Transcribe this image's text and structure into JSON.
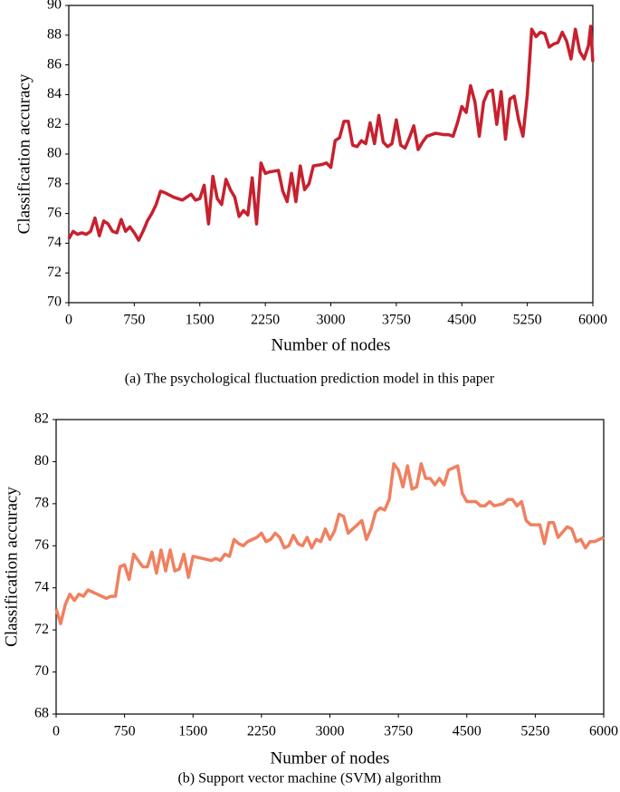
{
  "chart_data": [
    {
      "type": "line",
      "xlabel": "Number of nodes",
      "ylabel": "Classification accuracy",
      "caption": "(a) The psychological fluctuation prediction model in this paper",
      "color": "#c8202e",
      "x": [
        0,
        50,
        100,
        150,
        200,
        250,
        300,
        350,
        400,
        450,
        500,
        550,
        600,
        650,
        700,
        750,
        800,
        850,
        900,
        950,
        1000,
        1050,
        1100,
        1200,
        1300,
        1400,
        1450,
        1500,
        1550,
        1600,
        1650,
        1700,
        1750,
        1800,
        1850,
        1900,
        1950,
        2000,
        2050,
        2100,
        2150,
        2200,
        2250,
        2300,
        2400,
        2450,
        2500,
        2550,
        2600,
        2650,
        2700,
        2750,
        2800,
        2900,
        2950,
        3000,
        3050,
        3100,
        3150,
        3200,
        3250,
        3300,
        3350,
        3400,
        3450,
        3500,
        3550,
        3600,
        3650,
        3700,
        3750,
        3800,
        3850,
        3900,
        3950,
        4000,
        4050,
        4100,
        4200,
        4300,
        4350,
        4400,
        4450,
        4500,
        4550,
        4600,
        4650,
        4700,
        4750,
        4800,
        4850,
        4900,
        4950,
        5000,
        5050,
        5100,
        5150,
        5200,
        5250,
        5300,
        5350,
        5400,
        5450,
        5500,
        5550,
        5600,
        5650,
        5700,
        5750,
        5800,
        5850,
        5900,
        5950,
        5975,
        6000
      ],
      "values": [
        74.3,
        74.8,
        74.6,
        74.7,
        74.6,
        74.8,
        75.7,
        74.5,
        75.5,
        75.3,
        74.8,
        74.7,
        75.6,
        74.8,
        75.1,
        74.7,
        74.2,
        74.8,
        75.5,
        76.0,
        76.6,
        77.5,
        77.4,
        77.1,
        76.9,
        77.3,
        76.9,
        77.0,
        77.9,
        75.3,
        78.5,
        77.0,
        76.6,
        78.3,
        77.6,
        77.1,
        75.8,
        76.2,
        75.9,
        78.4,
        75.3,
        79.4,
        78.7,
        78.8,
        78.9,
        77.5,
        76.8,
        78.7,
        76.8,
        79.2,
        77.6,
        78.0,
        79.2,
        79.3,
        79.4,
        79.1,
        80.9,
        81.1,
        82.2,
        82.2,
        80.6,
        80.5,
        80.9,
        80.7,
        82.1,
        80.7,
        82.6,
        80.8,
        80.5,
        80.7,
        82.3,
        80.6,
        80.4,
        81.1,
        81.9,
        80.3,
        80.8,
        81.2,
        81.4,
        81.3,
        81.3,
        81.2,
        82.1,
        83.2,
        82.8,
        84.6,
        83.5,
        81.2,
        83.5,
        84.2,
        84.3,
        82.0,
        84.2,
        81.0,
        83.7,
        83.9,
        82.3,
        81.2,
        84.0,
        88.4,
        87.9,
        88.2,
        88.1,
        87.2,
        87.4,
        87.5,
        88.2,
        87.6,
        86.4,
        88.4,
        86.9,
        86.4,
        87.3,
        88.6,
        86.2
      ],
      "xlim": [
        0,
        6000
      ],
      "xticks": [
        0,
        750,
        1500,
        2250,
        3000,
        3750,
        4500,
        5250,
        6000
      ],
      "ylim": [
        70,
        90
      ],
      "yticks": [
        70,
        72,
        74,
        76,
        78,
        80,
        82,
        84,
        86,
        88,
        90
      ]
    },
    {
      "type": "line",
      "xlabel": "Number of nodes",
      "ylabel": "Classification accuracy",
      "caption": "(b) Support vector machine (SVM) algorithm",
      "color": "#f08060",
      "x": [
        0,
        50,
        100,
        150,
        200,
        250,
        300,
        350,
        400,
        450,
        500,
        550,
        600,
        650,
        700,
        750,
        800,
        850,
        900,
        950,
        1000,
        1050,
        1100,
        1150,
        1200,
        1250,
        1300,
        1350,
        1400,
        1450,
        1500,
        1600,
        1700,
        1750,
        1800,
        1850,
        1900,
        1950,
        2000,
        2050,
        2100,
        2200,
        2250,
        2300,
        2350,
        2400,
        2450,
        2500,
        2550,
        2600,
        2650,
        2700,
        2750,
        2800,
        2850,
        2900,
        2950,
        3000,
        3050,
        3100,
        3150,
        3200,
        3300,
        3350,
        3400,
        3450,
        3500,
        3550,
        3600,
        3650,
        3700,
        3750,
        3800,
        3850,
        3900,
        3950,
        4000,
        4050,
        4100,
        4150,
        4200,
        4250,
        4300,
        4400,
        4450,
        4500,
        4600,
        4650,
        4700,
        4750,
        4800,
        4900,
        4950,
        5000,
        5050,
        5100,
        5150,
        5200,
        5250,
        5300,
        5350,
        5400,
        5450,
        5500,
        5600,
        5650,
        5700,
        5750,
        5800,
        5850,
        5900,
        6000
      ],
      "values": [
        73.0,
        72.3,
        73.2,
        73.7,
        73.4,
        73.7,
        73.6,
        73.9,
        73.8,
        73.7,
        73.6,
        73.5,
        73.6,
        73.6,
        75.0,
        75.1,
        74.4,
        75.6,
        75.3,
        75.0,
        75.0,
        75.7,
        74.7,
        75.8,
        74.8,
        75.8,
        74.8,
        74.9,
        75.6,
        74.5,
        75.5,
        75.4,
        75.3,
        75.4,
        75.3,
        75.6,
        75.5,
        76.3,
        76.1,
        76.0,
        76.2,
        76.4,
        76.6,
        76.2,
        76.3,
        76.6,
        76.4,
        75.9,
        76.0,
        76.5,
        76.1,
        76.0,
        76.4,
        75.9,
        76.3,
        76.2,
        76.8,
        76.3,
        76.7,
        77.5,
        77.4,
        76.6,
        77.0,
        77.2,
        76.3,
        76.8,
        77.6,
        77.8,
        77.7,
        78.2,
        79.9,
        79.6,
        78.8,
        79.8,
        78.7,
        78.8,
        79.9,
        79.2,
        79.2,
        78.9,
        79.2,
        78.9,
        79.6,
        79.8,
        78.5,
        78.1,
        78.1,
        77.9,
        77.9,
        78.1,
        77.9,
        78.0,
        78.2,
        78.2,
        77.9,
        78.1,
        77.2,
        77.0,
        77.0,
        77.0,
        76.1,
        77.1,
        77.1,
        76.4,
        76.9,
        76.8,
        76.2,
        76.3,
        75.9,
        76.2,
        76.2,
        76.4
      ],
      "xlim": [
        0,
        6000
      ],
      "xticks": [
        0,
        750,
        1500,
        2250,
        3000,
        3750,
        4500,
        5250,
        6000
      ],
      "ylim": [
        68,
        82
      ],
      "yticks": [
        68,
        70,
        72,
        74,
        76,
        78,
        80,
        82
      ]
    }
  ]
}
